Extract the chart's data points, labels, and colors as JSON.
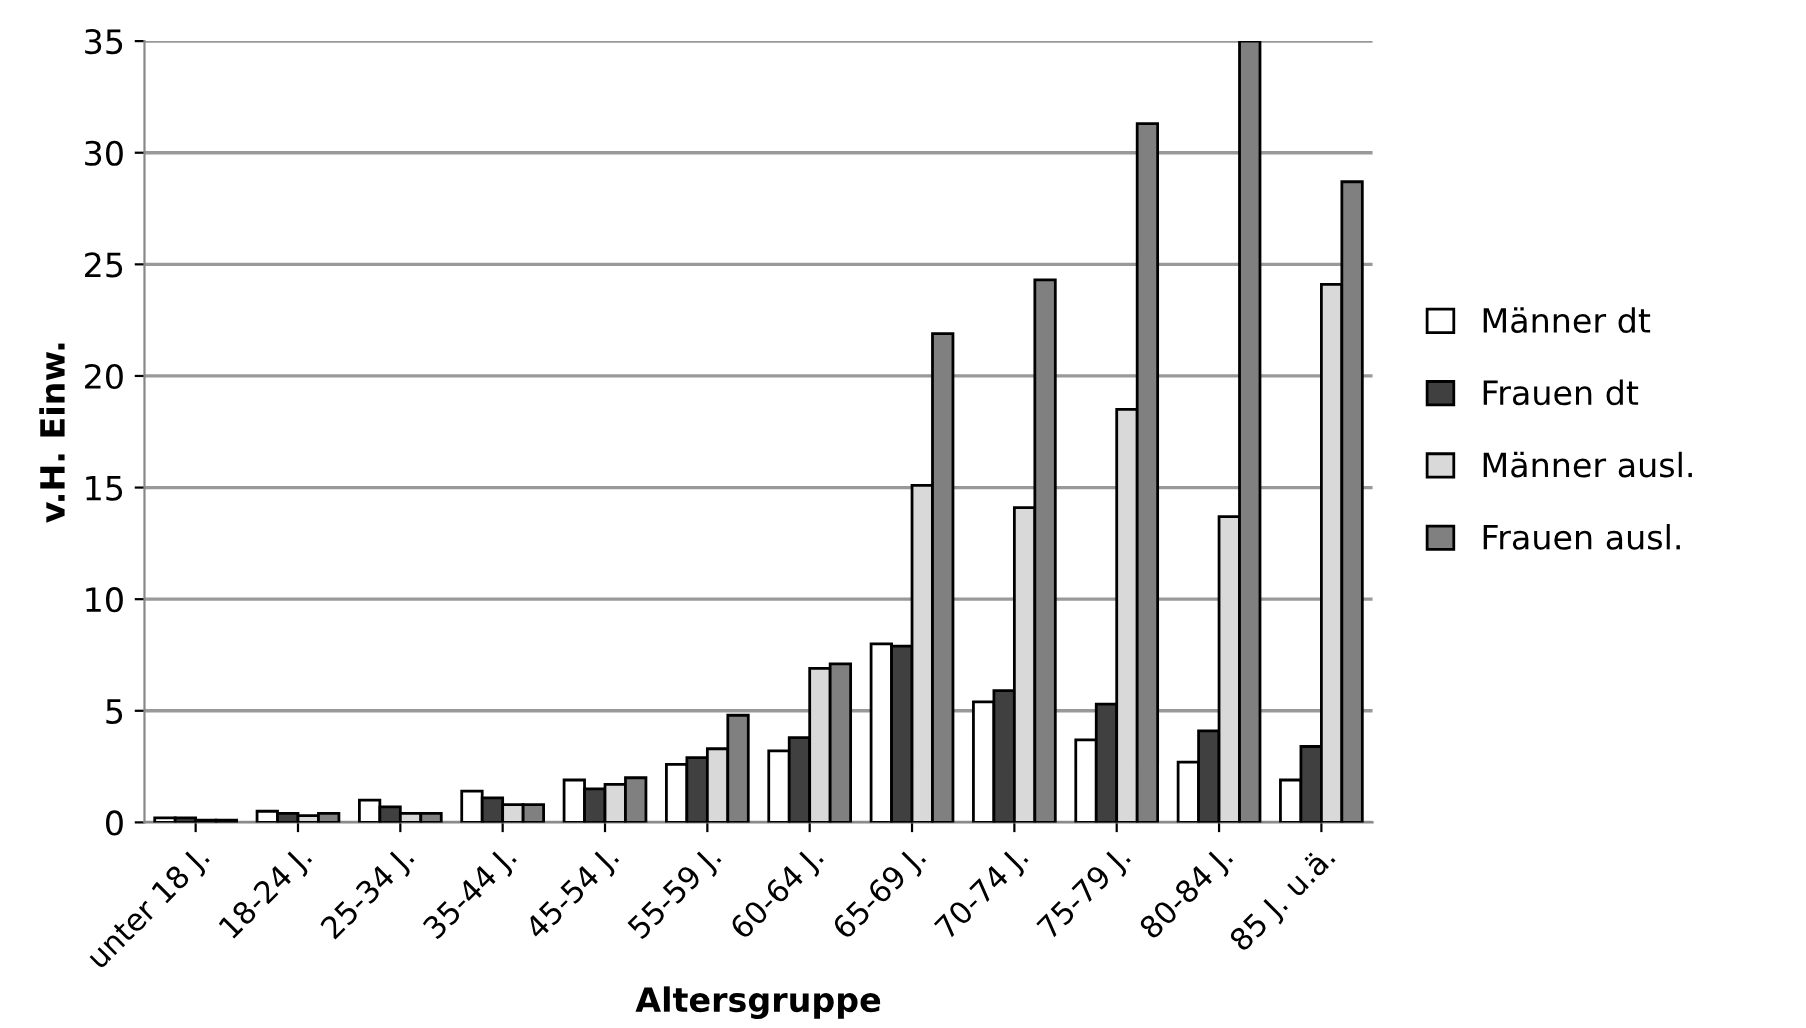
{
  "chart_data": {
    "type": "bar",
    "xlabel": "Altersgruppe",
    "ylabel": "v.H. Einw.",
    "categories": [
      "unter 18 J.",
      "18-24 J.",
      "25-34 J.",
      "35-44 J.",
      "45-54 J.",
      "55-59 J.",
      "60-64 J.",
      "65-69 J.",
      "70-74 J.",
      "75-79 J.",
      "80-84 J.",
      "85 J. u.ä."
    ],
    "series": [
      {
        "name": "Männer dt",
        "color": "#ffffff",
        "values": [
          0.2,
          0.5,
          1.0,
          1.4,
          1.9,
          2.6,
          3.2,
          8.0,
          5.4,
          3.7,
          2.7,
          1.9
        ]
      },
      {
        "name": "Frauen dt",
        "color": "#404040",
        "values": [
          0.2,
          0.4,
          0.7,
          1.1,
          1.5,
          2.9,
          3.8,
          7.9,
          5.9,
          5.3,
          4.1,
          3.4
        ]
      },
      {
        "name": "Männer ausl.",
        "color": "#d9d9d9",
        "values": [
          0.1,
          0.3,
          0.4,
          0.8,
          1.7,
          3.3,
          6.9,
          15.1,
          14.1,
          18.5,
          13.7,
          24.1
        ]
      },
      {
        "name": "Frauen ausl.",
        "color": "#808080",
        "values": [
          0.1,
          0.4,
          0.4,
          0.8,
          2.0,
          4.8,
          7.1,
          21.9,
          24.3,
          31.3,
          35,
          28.7
        ]
      }
    ],
    "ylim": [
      0,
      35
    ],
    "yticks": [
      0,
      5,
      10,
      15,
      20,
      25,
      30,
      35
    ],
    "grid": "y",
    "legend": "right"
  }
}
